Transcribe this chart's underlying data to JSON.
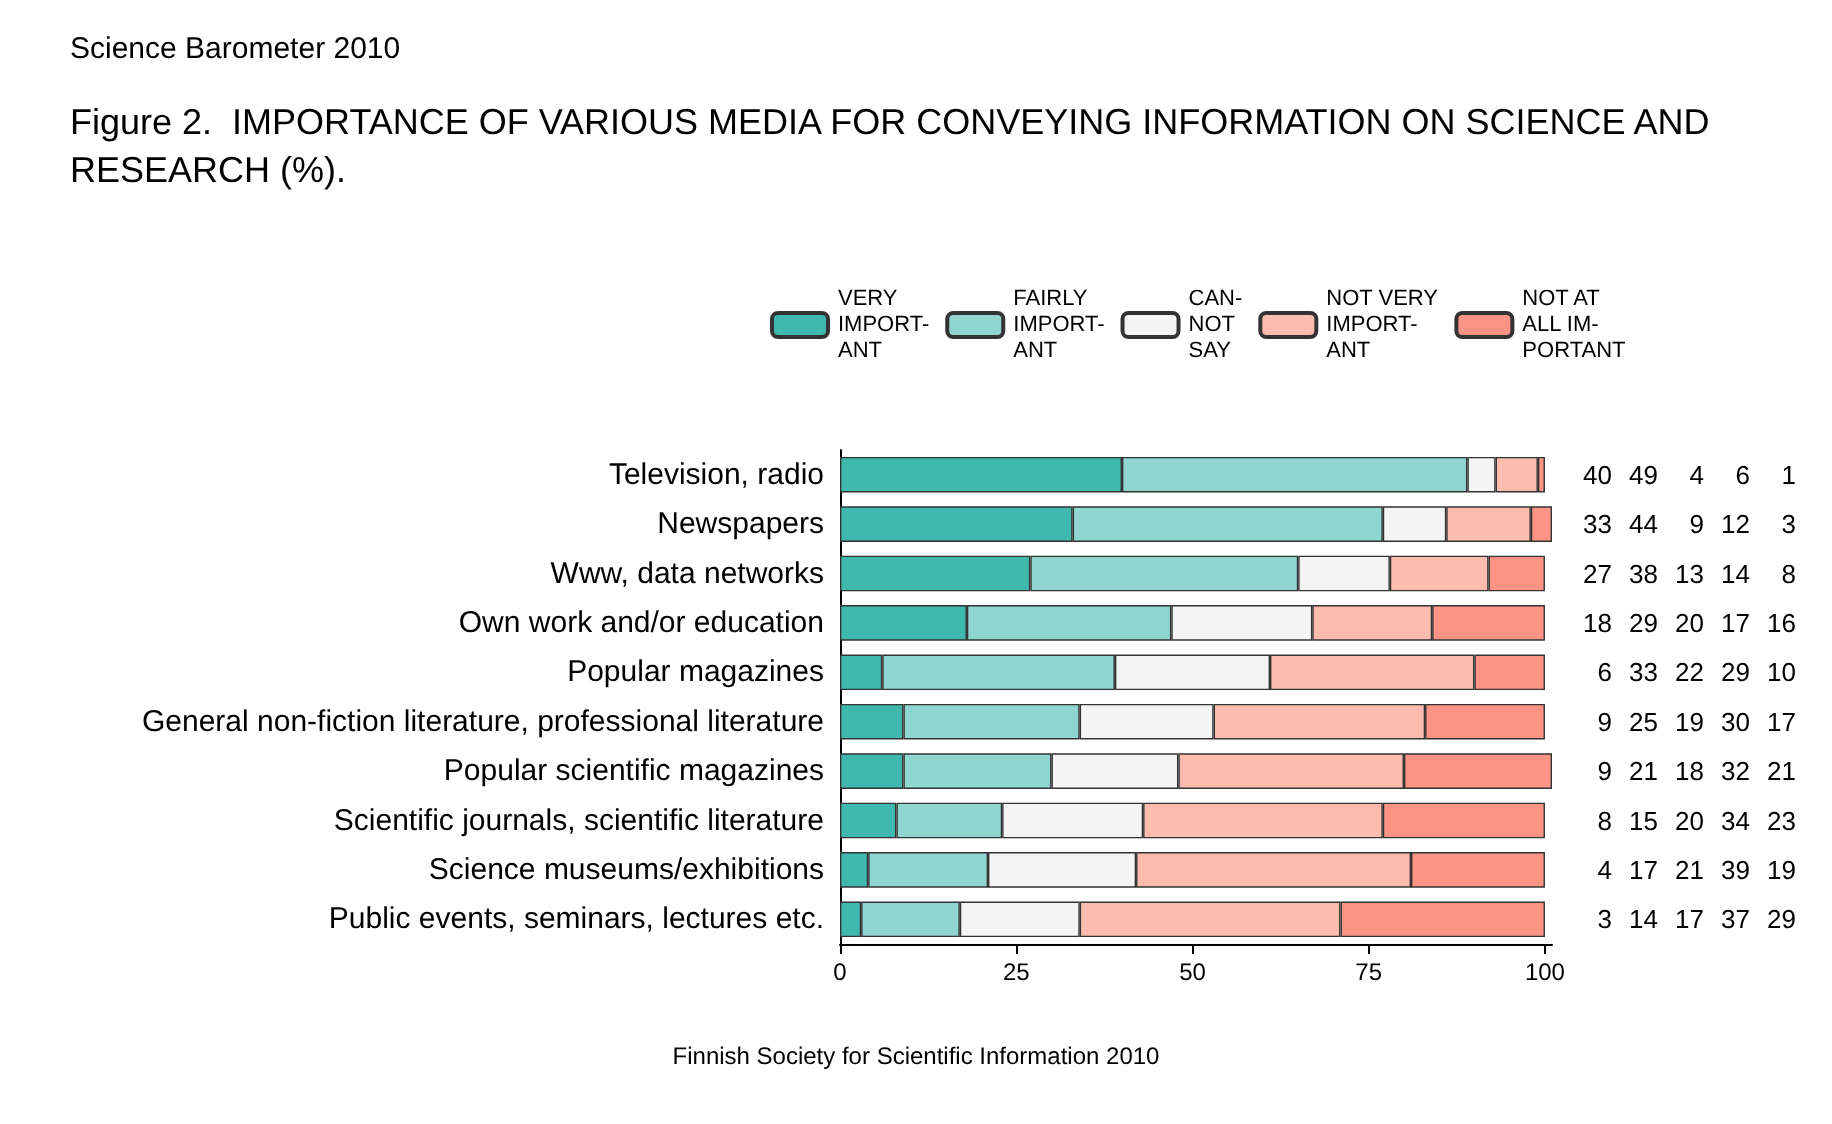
{
  "chart_data": {
    "type": "bar",
    "orientation": "horizontal",
    "stacked": true,
    "title": "Science Barometer 2010",
    "subtitle": "Figure 2.  IMPORTANCE OF VARIOUS MEDIA FOR CONVEYING INFORMATION ON SCIENCE AND RESEARCH (%).",
    "categories": [
      "Television, radio",
      "Newspapers",
      "Www, data networks",
      "Own work and/or education",
      "Popular magazines",
      "General non-fiction literature, professional literature",
      "Popular scientific magazines",
      "Scientific journals, scientific literature",
      "Science museums/exhibitions",
      "Public events, seminars, lectures etc."
    ],
    "series": [
      {
        "name": "VERY\nIMPORT-\nANT",
        "color": "#3fb8ad",
        "values": [
          40,
          33,
          27,
          18,
          6,
          9,
          9,
          8,
          4,
          3
        ]
      },
      {
        "name": "FAIRLY\nIMPORT-\nANT",
        "color": "#8fd6d1",
        "values": [
          49,
          44,
          38,
          29,
          33,
          25,
          21,
          15,
          17,
          14
        ]
      },
      {
        "name": "CAN-\nNOT\nSAY",
        "color": "#f4f4f4",
        "values": [
          4,
          9,
          13,
          20,
          22,
          19,
          18,
          20,
          21,
          17
        ]
      },
      {
        "name": "NOT VERY\nIMPORT-\nANT",
        "color": "#fdbcae",
        "values": [
          6,
          12,
          14,
          17,
          29,
          30,
          32,
          34,
          39,
          37
        ]
      },
      {
        "name": "NOT AT\nALL IM-\nPORTANT",
        "color": "#fb9485",
        "values": [
          1,
          3,
          8,
          16,
          10,
          17,
          21,
          23,
          19,
          29
        ]
      }
    ],
    "xlim": [
      0,
      101
    ],
    "xticks": [
      0,
      25,
      50,
      75,
      100
    ],
    "grid": false,
    "legend": "top",
    "data_labels": true,
    "annotations": [
      "Finnish Society for Scientific Information 2010"
    ]
  }
}
